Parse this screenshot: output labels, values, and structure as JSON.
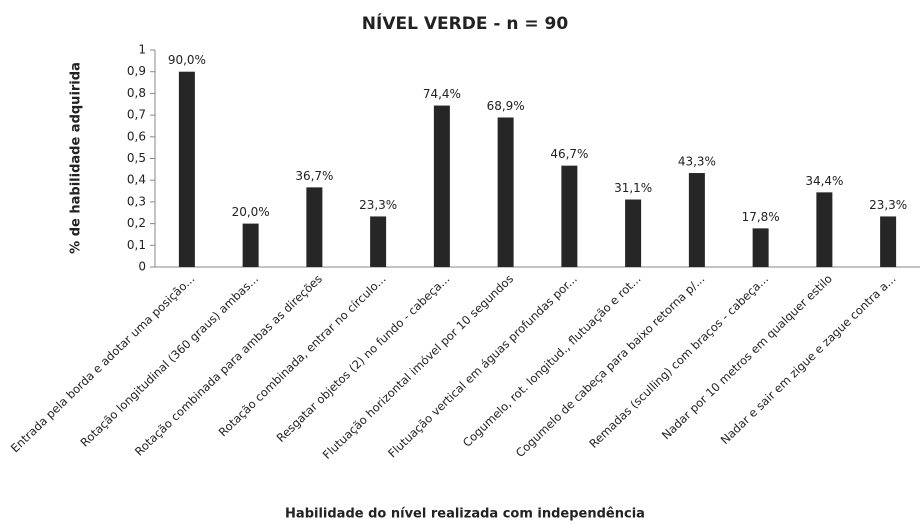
{
  "chart_data": {
    "type": "bar",
    "title": "NÍVEL VERDE - n = 90",
    "y_label": "% de habilidade adquirida",
    "x_label": "Habilidade do nível realizada com independência",
    "categories": [
      "Entrada pela borda e adotar uma posição...",
      "Rotação longitudinal (360 graus) ambas...",
      "Rotação combinada para ambas as direções",
      "Rotação combinada, entrar no círculo...",
      "Resgatar objetos (2) no fundo - cabeça...",
      "Flutuação horizontal imóvel por 10 segundos",
      "Flutuação vertical em águas profundas por...",
      "Cogumelo, rot. longitud., flutuação e rot...",
      "Cogumelo de cabeça para baixo retorna p/...",
      "Remadas (sculling) com braços - cabeça...",
      "Nadar por 10 metros em qualquer estilo",
      "Nadar e sair em zigue e zague contra a..."
    ],
    "values": [
      0.9,
      0.2,
      0.367,
      0.233,
      0.744,
      0.689,
      0.467,
      0.311,
      0.433,
      0.178,
      0.344,
      0.233
    ],
    "value_labels": [
      "90,0%",
      "20,0%",
      "36,7%",
      "23,3%",
      "74,4%",
      "68,9%",
      "46,7%",
      "31,1%",
      "43,3%",
      "17,8%",
      "34,4%",
      "23,3%"
    ],
    "color": "#262626",
    "ylim": [
      0,
      1
    ],
    "yticks": [
      0,
      {
        "value": 0.1,
        "label": "0,1"
      },
      {
        "value": 0.2,
        "label": "0,2"
      },
      {
        "value": 0.3,
        "label": "0,3"
      },
      {
        "value": 0.4,
        "label": "0,4"
      },
      {
        "value": 0.5,
        "label": "0,5"
      },
      {
        "value": 0.6,
        "label": "0,6"
      },
      {
        "value": 0.7,
        "label": "0,7"
      },
      {
        "value": 0.8,
        "label": "0,8"
      },
      {
        "value": 0.9,
        "label": "0,9"
      },
      1
    ],
    "grid": false
  }
}
